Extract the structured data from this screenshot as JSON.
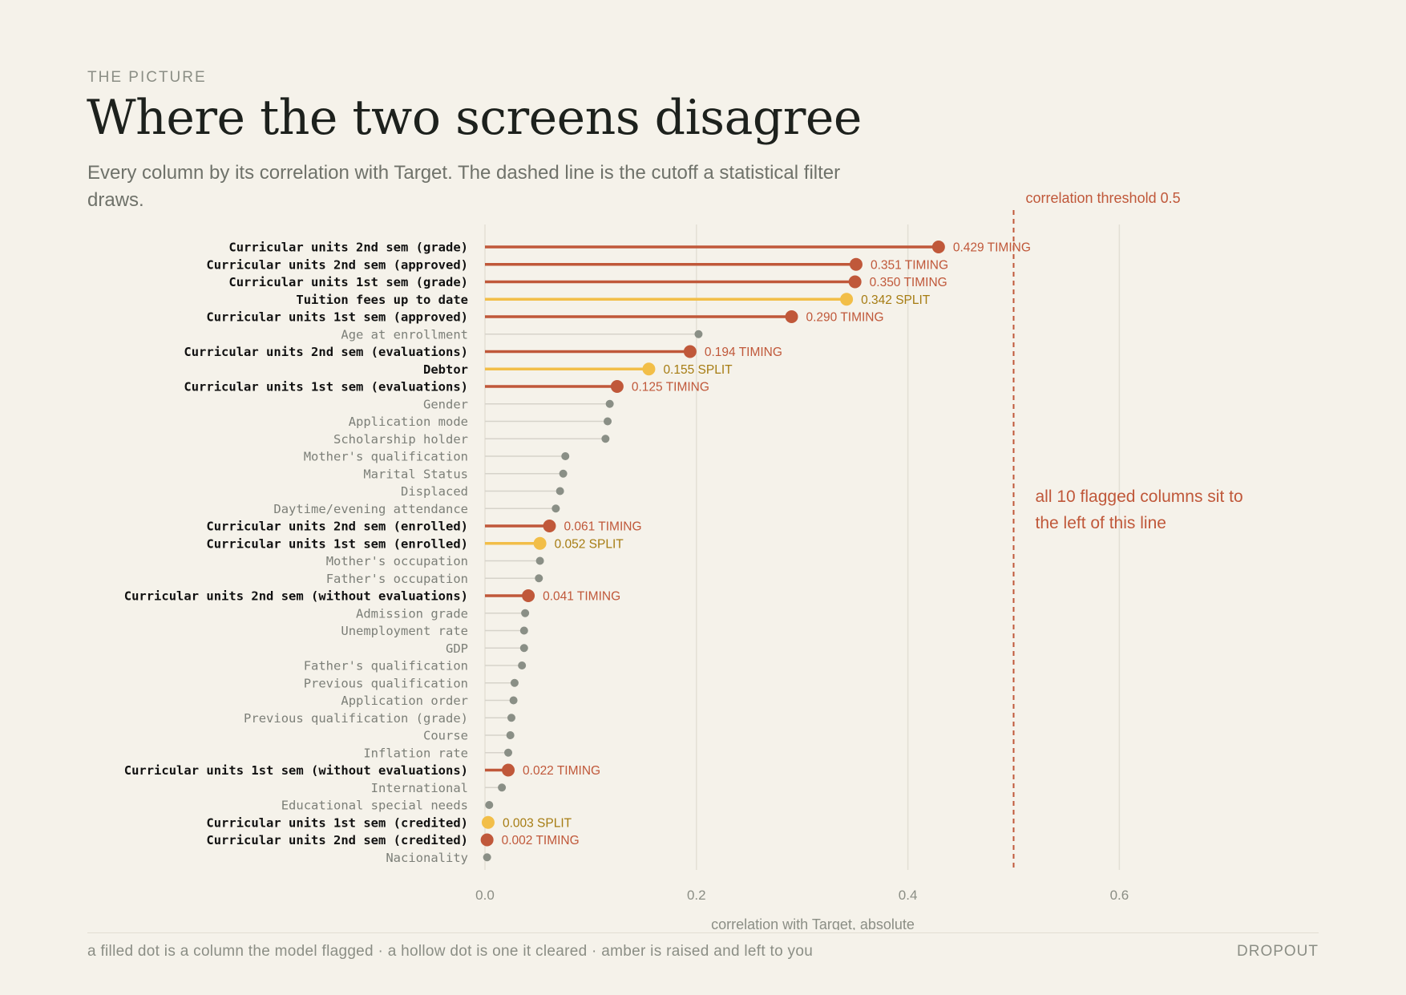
{
  "header": {
    "kicker": "THE PICTURE",
    "title": "Where the two screens disagree",
    "subtitle": "Every column by its correlation with Target. The dashed line is the cutoff a statistical filter draws."
  },
  "footer": {
    "note": "a filled dot is a column the model flagged · a hollow dot is one it cleared · amber is raised and left to you",
    "brand": "DROPOUT"
  },
  "colors": {
    "timing": "#c0583a",
    "split": "#f2be48",
    "split_text": "#a67c12",
    "plain": "#8a8f86",
    "plain_line": "#d6d3ca",
    "grid": "#e3dfd5"
  },
  "chart_data": {
    "type": "lollipop",
    "xlabel": "correlation with Target, absolute",
    "xlim": [
      0,
      0.7
    ],
    "xticks": [
      "0.0",
      "0.2",
      "0.4",
      "0.6"
    ],
    "xtick_values": [
      0,
      0.2,
      0.4,
      0.6
    ],
    "threshold": {
      "value": 0.5,
      "label": "correlation threshold 0.5"
    },
    "annotation": {
      "lines": [
        "all 10 flagged columns sit to",
        "the left of this line"
      ]
    },
    "rows": [
      {
        "name": "Curricular units 2nd sem (grade)",
        "value": 0.429,
        "flag": "TIMING",
        "label": "0.429 TIMING"
      },
      {
        "name": "Curricular units 2nd sem (approved)",
        "value": 0.351,
        "flag": "TIMING",
        "label": "0.351 TIMING"
      },
      {
        "name": "Curricular units 1st sem (grade)",
        "value": 0.35,
        "flag": "TIMING",
        "label": "0.350 TIMING"
      },
      {
        "name": "Tuition fees up to date",
        "value": 0.342,
        "flag": "SPLIT",
        "label": "0.342 SPLIT"
      },
      {
        "name": "Curricular units 1st sem (approved)",
        "value": 0.29,
        "flag": "TIMING",
        "label": "0.290 TIMING"
      },
      {
        "name": "Age at enrollment",
        "value": 0.202,
        "flag": null,
        "label": ""
      },
      {
        "name": "Curricular units 2nd sem (evaluations)",
        "value": 0.194,
        "flag": "TIMING",
        "label": "0.194 TIMING"
      },
      {
        "name": "Debtor",
        "value": 0.155,
        "flag": "SPLIT",
        "label": "0.155 SPLIT"
      },
      {
        "name": "Curricular units 1st sem (evaluations)",
        "value": 0.125,
        "flag": "TIMING",
        "label": "0.125 TIMING"
      },
      {
        "name": "Gender",
        "value": 0.118,
        "flag": null,
        "label": ""
      },
      {
        "name": "Application mode",
        "value": 0.116,
        "flag": null,
        "label": ""
      },
      {
        "name": "Scholarship holder",
        "value": 0.114,
        "flag": null,
        "label": ""
      },
      {
        "name": "Mother's qualification",
        "value": 0.076,
        "flag": null,
        "label": ""
      },
      {
        "name": "Marital Status",
        "value": 0.074,
        "flag": null,
        "label": ""
      },
      {
        "name": "Displaced",
        "value": 0.071,
        "flag": null,
        "label": ""
      },
      {
        "name": "Daytime/evening attendance",
        "value": 0.067,
        "flag": null,
        "label": ""
      },
      {
        "name": "Curricular units 2nd sem (enrolled)",
        "value": 0.061,
        "flag": "TIMING",
        "label": "0.061 TIMING"
      },
      {
        "name": "Curricular units 1st sem (enrolled)",
        "value": 0.052,
        "flag": "SPLIT",
        "label": "0.052 SPLIT"
      },
      {
        "name": "Mother's occupation",
        "value": 0.052,
        "flag": null,
        "label": ""
      },
      {
        "name": "Father's occupation",
        "value": 0.051,
        "flag": null,
        "label": ""
      },
      {
        "name": "Curricular units 2nd sem (without evaluations)",
        "value": 0.041,
        "flag": "TIMING",
        "label": "0.041 TIMING"
      },
      {
        "name": "Admission grade",
        "value": 0.038,
        "flag": null,
        "label": ""
      },
      {
        "name": "Unemployment rate",
        "value": 0.037,
        "flag": null,
        "label": ""
      },
      {
        "name": "GDP",
        "value": 0.037,
        "flag": null,
        "label": ""
      },
      {
        "name": "Father's qualification",
        "value": 0.035,
        "flag": null,
        "label": ""
      },
      {
        "name": "Previous qualification",
        "value": 0.028,
        "flag": null,
        "label": ""
      },
      {
        "name": "Application order",
        "value": 0.027,
        "flag": null,
        "label": ""
      },
      {
        "name": "Previous qualification (grade)",
        "value": 0.025,
        "flag": null,
        "label": ""
      },
      {
        "name": "Course",
        "value": 0.024,
        "flag": null,
        "label": ""
      },
      {
        "name": "Inflation rate",
        "value": 0.022,
        "flag": null,
        "label": ""
      },
      {
        "name": "Curricular units 1st sem (without evaluations)",
        "value": 0.022,
        "flag": "TIMING",
        "label": "0.022 TIMING"
      },
      {
        "name": "International",
        "value": 0.016,
        "flag": null,
        "label": ""
      },
      {
        "name": "Educational special needs",
        "value": 0.004,
        "flag": null,
        "label": ""
      },
      {
        "name": "Curricular units 1st sem (credited)",
        "value": 0.003,
        "flag": "SPLIT",
        "label": "0.003 SPLIT"
      },
      {
        "name": "Curricular units 2nd sem (credited)",
        "value": 0.002,
        "flag": "TIMING",
        "label": "0.002 TIMING"
      },
      {
        "name": "Nacionality",
        "value": 0.002,
        "flag": null,
        "label": ""
      }
    ]
  }
}
